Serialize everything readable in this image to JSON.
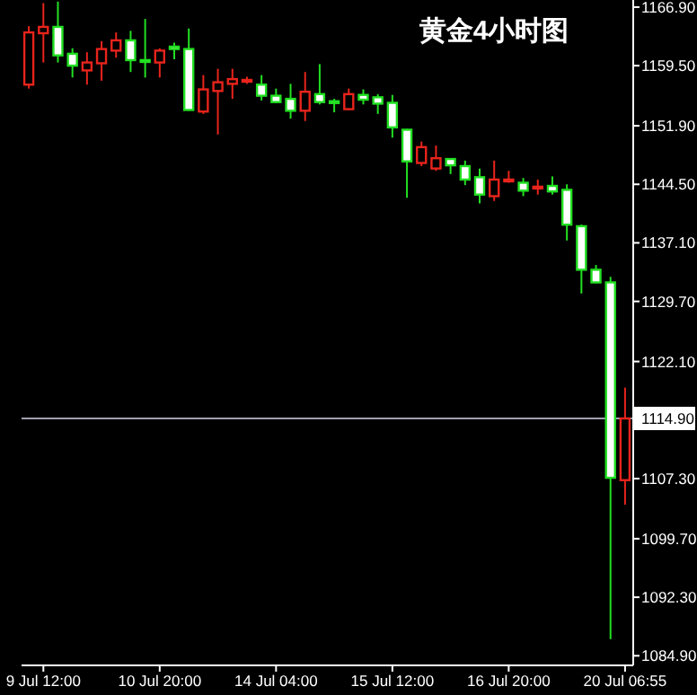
{
  "chart_data": {
    "type": "candlestick",
    "title": "黄金4小时图",
    "categories": [
      null,
      "9 Jul 12:00",
      null,
      null,
      null,
      null,
      null,
      null,
      null,
      "10 Jul 20:00",
      null,
      null,
      null,
      null,
      null,
      null,
      null,
      "14 Jul 04:00",
      null,
      null,
      null,
      null,
      null,
      null,
      null,
      "15 Jul 12:00",
      null,
      null,
      null,
      null,
      null,
      null,
      null,
      "16 Jul 20:00",
      null,
      null,
      null,
      null,
      null,
      null,
      null,
      "20 Jul 06:55"
    ],
    "ylim": [
      1083.8,
      1167.8
    ],
    "yticks": [
      {
        "value": 1084.9,
        "label": "1084.90"
      },
      {
        "value": 1092.3,
        "label": "1092.30"
      },
      {
        "value": 1099.7,
        "label": "1099.70"
      },
      {
        "value": 1107.3,
        "label": "1107.30"
      },
      {
        "value": 1122.1,
        "label": "1122.10"
      },
      {
        "value": 1129.7,
        "label": "1129.70"
      },
      {
        "value": 1137.1,
        "label": "1137.10"
      },
      {
        "value": 1144.5,
        "label": "1144.50"
      },
      {
        "value": 1151.9,
        "label": "1151.90"
      },
      {
        "value": 1159.5,
        "label": "1159.50"
      },
      {
        "value": 1166.9,
        "label": "1166.90"
      }
    ],
    "ohlc": [
      [
        1157.1,
        1164.5,
        1156.6,
        1163.7
      ],
      [
        1163.6,
        1167.4,
        1159.9,
        1164.4
      ],
      [
        1164.4,
        1167.6,
        1159.9,
        1160.8
      ],
      [
        1161.0,
        1161.7,
        1158.0,
        1159.5
      ],
      [
        1158.9,
        1161.2,
        1157.1,
        1159.9
      ],
      [
        1159.8,
        1162.6,
        1157.6,
        1161.6
      ],
      [
        1161.4,
        1163.7,
        1160.5,
        1162.7
      ],
      [
        1162.7,
        1163.9,
        1158.7,
        1160.2
      ],
      [
        1160.2,
        1165.4,
        1158.0,
        1160.1
      ],
      [
        1159.9,
        1161.7,
        1158.0,
        1161.4
      ],
      [
        1161.9,
        1162.4,
        1160.3,
        1161.6
      ],
      [
        1161.6,
        1164.2,
        1153.8,
        1153.9
      ],
      [
        1153.7,
        1158.3,
        1153.4,
        1156.5
      ],
      [
        1156.3,
        1159.1,
        1150.8,
        1157.4
      ],
      [
        1157.2,
        1159.1,
        1155.3,
        1157.8
      ],
      [
        1157.6,
        1158.1,
        1157.2,
        1157.7
      ],
      [
        1157.1,
        1158.3,
        1155.1,
        1155.7
      ],
      [
        1155.7,
        1156.6,
        1154.8,
        1154.9
      ],
      [
        1155.3,
        1157.2,
        1152.8,
        1153.8
      ],
      [
        1153.8,
        1158.7,
        1152.5,
        1156.2
      ],
      [
        1155.9,
        1159.7,
        1154.6,
        1154.9
      ],
      [
        1155.0,
        1155.3,
        1153.6,
        1154.9
      ],
      [
        1154.0,
        1156.6,
        1153.9,
        1155.9
      ],
      [
        1155.8,
        1156.5,
        1154.6,
        1155.2
      ],
      [
        1155.5,
        1155.9,
        1153.4,
        1154.7
      ],
      [
        1154.8,
        1155.8,
        1150.4,
        1151.7
      ],
      [
        1151.4,
        1151.5,
        1142.8,
        1147.4
      ],
      [
        1147.2,
        1149.9,
        1146.8,
        1149.2
      ],
      [
        1146.5,
        1149.4,
        1146.2,
        1147.8
      ],
      [
        1147.7,
        1147.8,
        1145.8,
        1146.9
      ],
      [
        1146.8,
        1147.5,
        1144.4,
        1145.1
      ],
      [
        1145.4,
        1146.5,
        1142.1,
        1143.2
      ],
      [
        1143.0,
        1147.5,
        1142.4,
        1145.1
      ],
      [
        1145.0,
        1146.2,
        1144.7,
        1145.1
      ],
      [
        1144.7,
        1145.3,
        1143.0,
        1143.7
      ],
      [
        1144.1,
        1145.1,
        1143.2,
        1144.2
      ],
      [
        1144.3,
        1145.5,
        1143.2,
        1143.6
      ],
      [
        1143.8,
        1144.5,
        1137.4,
        1139.4
      ],
      [
        1139.2,
        1139.4,
        1130.7,
        1133.7
      ],
      [
        1133.7,
        1134.3,
        1132.0,
        1132.1
      ],
      [
        1132.1,
        1132.8,
        1087.0,
        1107.4
      ],
      [
        1107.1,
        1118.8,
        1104.0,
        1114.9
      ]
    ],
    "colors": [
      "#e8241c",
      "#e8241c",
      "#22e022",
      "#22e022",
      "#e8241c",
      "#e8241c",
      "#e8241c",
      "#22e022",
      "#22e022",
      "#e8241c",
      "#22e022",
      "#22e022",
      "#e8241c",
      "#e8241c",
      "#e8241c",
      "#e8241c",
      "#22e022",
      "#22e022",
      "#22e022",
      "#e8241c",
      "#22e022",
      "#22e022",
      "#e8241c",
      "#22e022",
      "#22e022",
      "#22e022",
      "#22e022",
      "#e8241c",
      "#e8241c",
      "#22e022",
      "#22e022",
      "#22e022",
      "#e8241c",
      "#e8241c",
      "#22e022",
      "#e8241c",
      "#22e022",
      "#22e022",
      "#22e022",
      "#22e022",
      "#22e022",
      "#e8241c"
    ],
    "ref_lines": [
      {
        "axis": "y",
        "value": 1114.9,
        "label": "1114.90",
        "color": "#a0a0b0"
      }
    ],
    "grid": false
  }
}
